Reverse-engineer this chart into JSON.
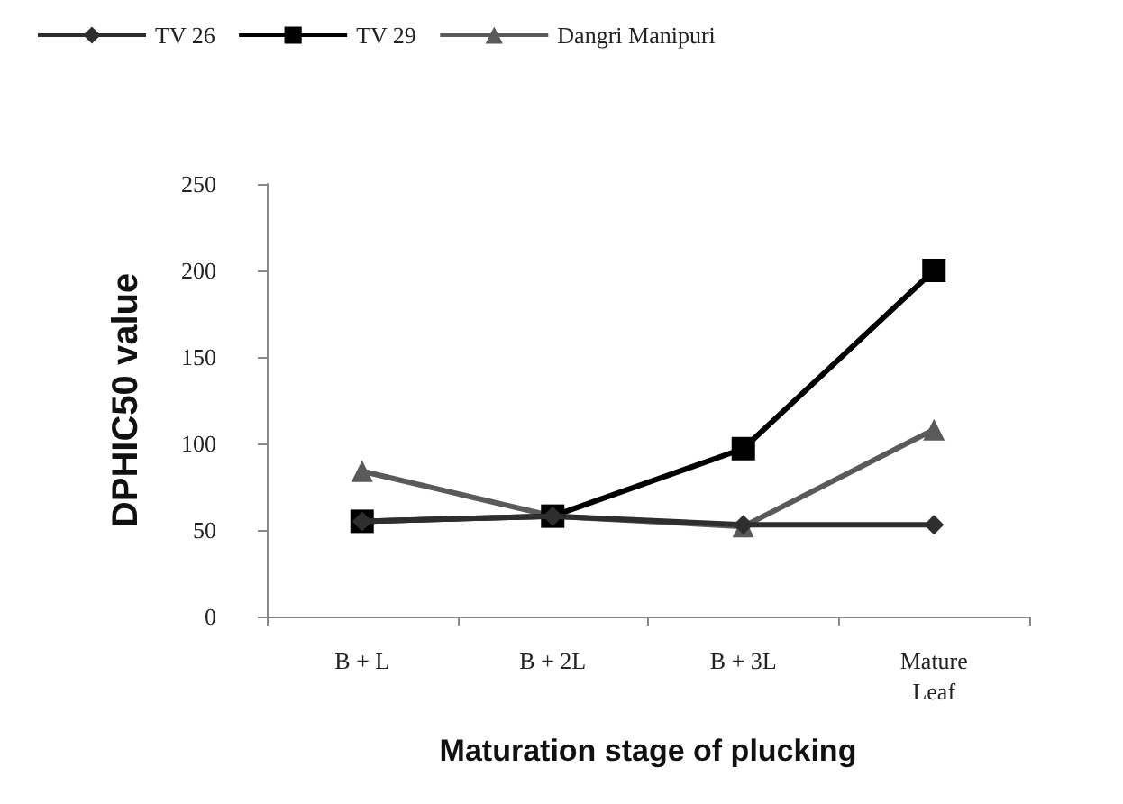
{
  "chart_data": {
    "type": "line",
    "xlabel": "Maturation stage of plucking",
    "ylabel": "DPHIC50 value",
    "categories": [
      "B + L",
      "B + 2L",
      "B + 3L",
      "Mature\nLeaf"
    ],
    "series": [
      {
        "name": "TV 26",
        "color": "#2e2e2e",
        "marker": "diamond",
        "values": [
          55,
          58,
          53,
          53
        ]
      },
      {
        "name": "TV 29",
        "color": "#000000",
        "marker": "square",
        "values": [
          55,
          58,
          97,
          200
        ]
      },
      {
        "name": "Dangri Manipuri",
        "color": "#5a5a5a",
        "marker": "triangle",
        "values": [
          84,
          58,
          52,
          108
        ]
      }
    ],
    "ylim": [
      0,
      250
    ],
    "yticks": [
      0,
      50,
      100,
      150,
      200,
      250
    ],
    "grid": false,
    "legend": "top"
  }
}
